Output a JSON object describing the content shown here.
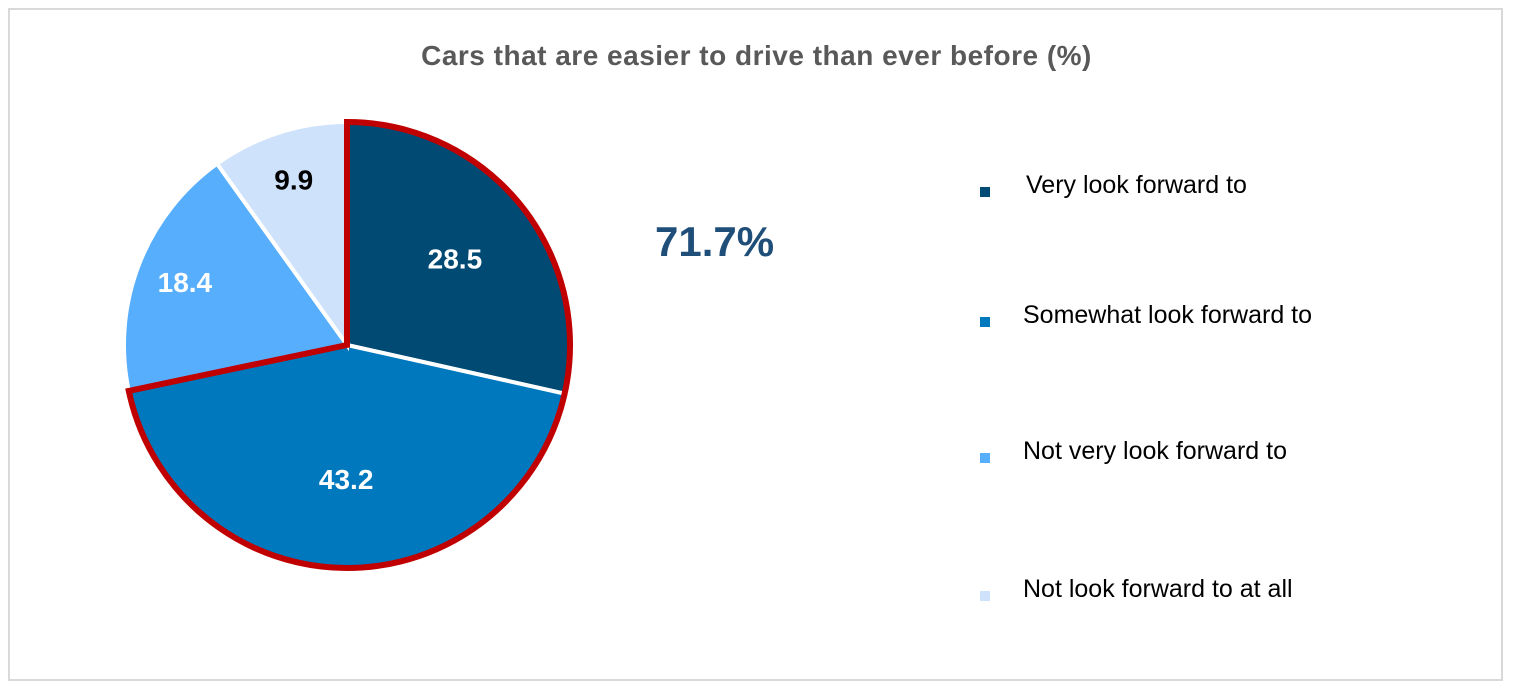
{
  "chart_data": {
    "type": "pie",
    "title": "Cars that are easier to drive than ever before (%)",
    "categories": [
      "Very look forward to",
      "Somewhat look forward to",
      "Not very look forward to",
      "Not look forward to at all"
    ],
    "values": [
      28.5,
      43.2,
      18.4,
      9.9
    ],
    "data_labels": [
      "28.5",
      "43.2",
      "18.4",
      "9.9"
    ],
    "colors": [
      "#004a74",
      "#0078be",
      "#56aefc",
      "#cfe2fb"
    ],
    "label_colors": [
      "#ffffff",
      "#ffffff",
      "#ffffff",
      "#000000"
    ],
    "start_angle": "12 o'clock, clockwise",
    "highlight": {
      "slices": [
        "Very look forward to",
        "Somewhat look forward to"
      ],
      "outline_color": "#c00000",
      "annotation": "71.7%"
    },
    "legend_position": "right"
  }
}
